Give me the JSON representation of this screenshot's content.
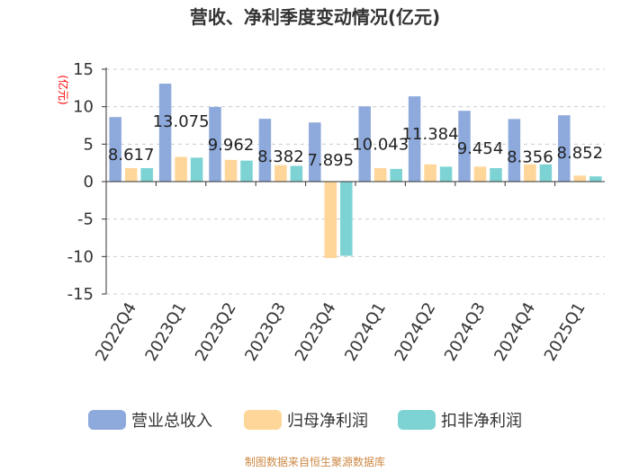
{
  "chart_data": {
    "type": "bar",
    "title": "营收、净利季度变动情况(亿元)",
    "ylabel": "(亿元)",
    "ylim": [
      -15,
      15
    ],
    "yticks": [
      15,
      10,
      5,
      0,
      -5,
      -10,
      -15
    ],
    "categories": [
      "2022Q4",
      "2023Q1",
      "2023Q2",
      "2023Q3",
      "2023Q4",
      "2024Q1",
      "2024Q2",
      "2024Q3",
      "2024Q4",
      "2025Q1"
    ],
    "series": [
      {
        "name": "营业总收入",
        "color": "#8EAADC",
        "values": [
          8.617,
          13.075,
          9.962,
          8.382,
          7.895,
          10.043,
          11.384,
          9.454,
          8.356,
          8.852
        ]
      },
      {
        "name": "归母净利润",
        "color": "#FFD699",
        "values": [
          1.8,
          3.3,
          2.9,
          2.2,
          -10.2,
          1.8,
          2.3,
          2.0,
          2.3,
          0.8
        ]
      },
      {
        "name": "扣非净利润",
        "color": "#7DD3D3",
        "values": [
          1.8,
          3.2,
          2.8,
          2.1,
          -9.9,
          1.7,
          2.0,
          1.8,
          2.3,
          0.7
        ]
      }
    ],
    "data_labels": [
      "8.617",
      "13.075",
      "9.962",
      "8.382",
      "7.895",
      "10.043",
      "11.384",
      "9.454",
      "8.356",
      "8.852"
    ],
    "legend_position": "bottom",
    "source": "制图数据来自恒生聚源数据库"
  }
}
